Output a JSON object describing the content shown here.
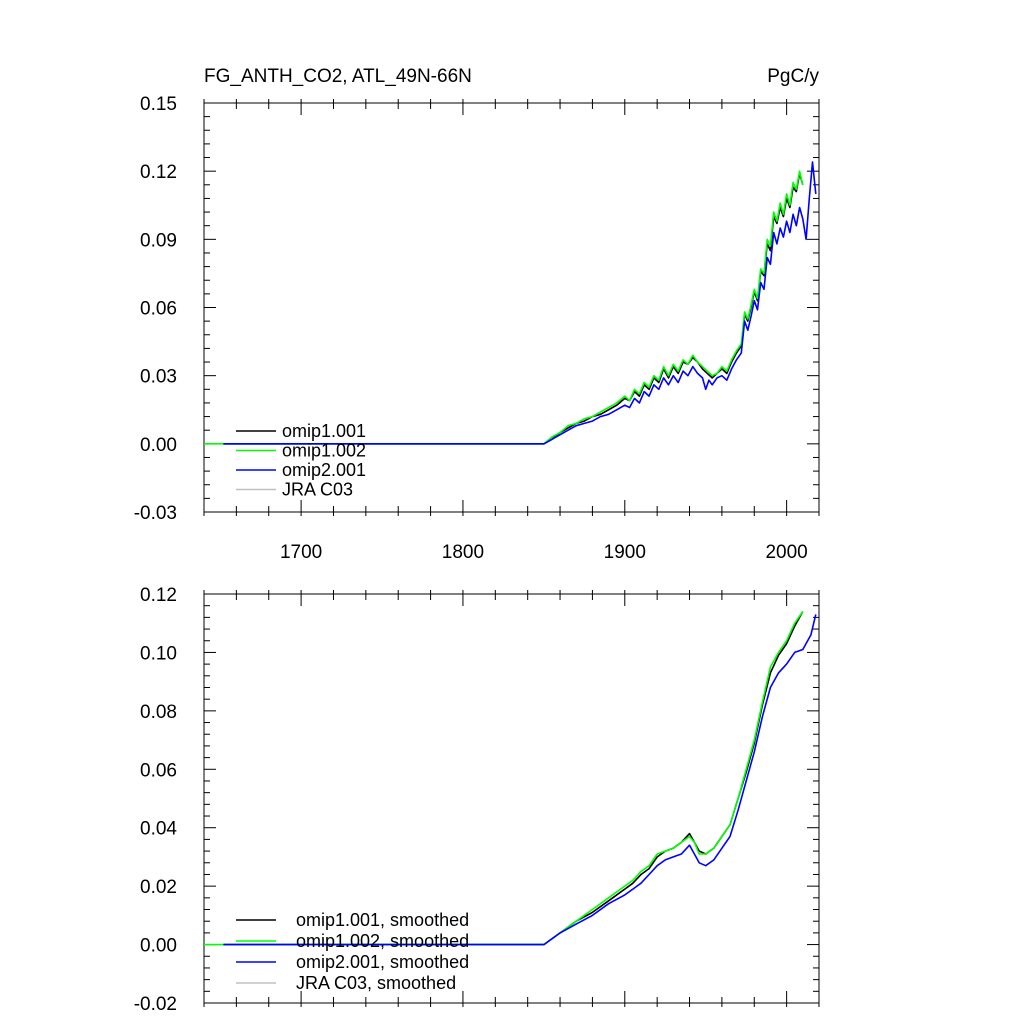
{
  "header": {
    "title": "FG_ANTH_CO2, ATL_49N-66N",
    "units": "PgC/y"
  },
  "chart_data": [
    {
      "id": "annual",
      "type": "line",
      "title": "FG_ANTH_CO2, ATL_49N-66N",
      "ylabel_right": "PgC/y",
      "xlim": [
        1640,
        2020
      ],
      "ylim": [
        -0.03,
        0.15
      ],
      "xticks": [
        1700,
        1800,
        1900,
        2000
      ],
      "xtick_labels": [
        "1700",
        "1800",
        "1900",
        "2000"
      ],
      "yticks": [
        -0.03,
        0,
        0.03,
        0.06,
        0.09,
        0.12,
        0.15
      ],
      "ytick_labels": [
        "-0.03",
        "0.00",
        "0.03",
        "0.06",
        "0.09",
        "0.12",
        "0.15"
      ],
      "legend": [
        "omip1.001",
        "omip1.002",
        "omip2.001",
        "JRA C03"
      ],
      "legend_position": "bottom-left",
      "series": [
        {
          "name": "omip1.001",
          "color": "#000000",
          "x": [
            1652,
            1850,
            1855,
            1860,
            1865,
            1870,
            1875,
            1880,
            1885,
            1890,
            1895,
            1900,
            1903,
            1906,
            1909,
            1912,
            1915,
            1918,
            1921,
            1924,
            1927,
            1930,
            1933,
            1936,
            1939,
            1942,
            1945,
            1948,
            1951,
            1954,
            1957,
            1960,
            1963,
            1966,
            1969,
            1972,
            1974,
            1976,
            1978,
            1980,
            1982,
            1984,
            1986,
            1988,
            1990,
            1992,
            1994,
            1996,
            1998,
            2000,
            2002,
            2004,
            2006,
            2008,
            2010
          ],
          "y": [
            0,
            0,
            0.002,
            0.005,
            0.007,
            0.009,
            0.01,
            0.012,
            0.013,
            0.015,
            0.017,
            0.02,
            0.019,
            0.023,
            0.021,
            0.026,
            0.024,
            0.029,
            0.027,
            0.033,
            0.029,
            0.034,
            0.031,
            0.036,
            0.035,
            0.038,
            0.036,
            0.033,
            0.031,
            0.029,
            0.031,
            0.033,
            0.031,
            0.036,
            0.04,
            0.043,
            0.057,
            0.054,
            0.06,
            0.067,
            0.063,
            0.076,
            0.074,
            0.088,
            0.085,
            0.1,
            0.097,
            0.104,
            0.1,
            0.108,
            0.104,
            0.113,
            0.111,
            0.119,
            0.114
          ]
        },
        {
          "name": "omip1.002",
          "color": "#00ff00",
          "x": [
            1640,
            1850,
            1855,
            1860,
            1865,
            1870,
            1875,
            1880,
            1885,
            1890,
            1895,
            1900,
            1903,
            1906,
            1909,
            1912,
            1915,
            1918,
            1921,
            1924,
            1927,
            1930,
            1933,
            1936,
            1939,
            1942,
            1945,
            1948,
            1951,
            1954,
            1957,
            1960,
            1963,
            1966,
            1969,
            1972,
            1974,
            1976,
            1978,
            1980,
            1982,
            1984,
            1986,
            1988,
            1990,
            1992,
            1994,
            1996,
            1998,
            2000,
            2002,
            2004,
            2006,
            2008,
            2010
          ],
          "y": [
            0,
            0,
            0.003,
            0.005,
            0.008,
            0.009,
            0.011,
            0.012,
            0.014,
            0.016,
            0.018,
            0.021,
            0.019,
            0.024,
            0.022,
            0.027,
            0.025,
            0.03,
            0.028,
            0.034,
            0.03,
            0.035,
            0.032,
            0.037,
            0.035,
            0.039,
            0.036,
            0.034,
            0.032,
            0.03,
            0.031,
            0.034,
            0.032,
            0.037,
            0.041,
            0.044,
            0.058,
            0.055,
            0.061,
            0.068,
            0.064,
            0.077,
            0.075,
            0.09,
            0.087,
            0.102,
            0.098,
            0.106,
            0.101,
            0.11,
            0.105,
            0.115,
            0.112,
            0.12,
            0.114
          ]
        },
        {
          "name": "omip2.001",
          "color": "#0000ff",
          "x": [
            1652,
            1850,
            1855,
            1860,
            1865,
            1870,
            1875,
            1880,
            1885,
            1890,
            1895,
            1900,
            1903,
            1906,
            1909,
            1912,
            1915,
            1918,
            1921,
            1924,
            1927,
            1930,
            1933,
            1936,
            1939,
            1942,
            1945,
            1948,
            1950,
            1952,
            1954,
            1957,
            1960,
            1963,
            1966,
            1969,
            1972,
            1974,
            1976,
            1978,
            1980,
            1982,
            1984,
            1986,
            1988,
            1990,
            1992,
            1994,
            1996,
            1998,
            2000,
            2002,
            2004,
            2006,
            2008,
            2010,
            2012,
            2014,
            2016,
            2018
          ],
          "y": [
            0,
            0,
            0.002,
            0.004,
            0.006,
            0.008,
            0.009,
            0.01,
            0.012,
            0.013,
            0.015,
            0.017,
            0.016,
            0.02,
            0.018,
            0.023,
            0.021,
            0.026,
            0.024,
            0.029,
            0.026,
            0.03,
            0.027,
            0.032,
            0.03,
            0.034,
            0.031,
            0.029,
            0.024,
            0.028,
            0.026,
            0.029,
            0.03,
            0.028,
            0.033,
            0.037,
            0.04,
            0.054,
            0.05,
            0.056,
            0.063,
            0.059,
            0.071,
            0.068,
            0.082,
            0.079,
            0.093,
            0.088,
            0.095,
            0.091,
            0.098,
            0.093,
            0.101,
            0.096,
            0.104,
            0.099,
            0.09,
            0.108,
            0.124,
            0.11
          ]
        },
        {
          "name": "JRA C03",
          "color": "#c0c0c0",
          "x": [],
          "y": []
        }
      ]
    },
    {
      "id": "smoothed",
      "type": "line",
      "xlim": [
        1640,
        2020
      ],
      "ylim": [
        -0.02,
        0.12
      ],
      "xticks": [
        1700,
        1800,
        1900,
        2000
      ],
      "yticks": [
        -0.02,
        0,
        0.02,
        0.04,
        0.06,
        0.08,
        0.1,
        0.12
      ],
      "ytick_labels": [
        "-0.02",
        "0.00",
        "0.02",
        "0.04",
        "0.06",
        "0.08",
        "0.10",
        "0.12"
      ],
      "legend": [
        "omip1.001, smoothed",
        "omip1.002, smoothed",
        "omip2.001, smoothed",
        "JRA C03, smoothed"
      ],
      "legend_position": "bottom-left",
      "series": [
        {
          "name": "omip1.001, smoothed",
          "color": "#000000",
          "x": [
            1652,
            1850,
            1860,
            1870,
            1880,
            1890,
            1900,
            1905,
            1910,
            1915,
            1920,
            1925,
            1930,
            1935,
            1940,
            1943,
            1946,
            1950,
            1955,
            1960,
            1965,
            1970,
            1975,
            1980,
            1985,
            1990,
            1995,
            2000,
            2005,
            2010
          ],
          "y": [
            0,
            0,
            0.004,
            0.008,
            0.011,
            0.015,
            0.019,
            0.021,
            0.024,
            0.026,
            0.03,
            0.032,
            0.033,
            0.035,
            0.038,
            0.035,
            0.032,
            0.031,
            0.033,
            0.037,
            0.041,
            0.05,
            0.059,
            0.069,
            0.082,
            0.093,
            0.099,
            0.103,
            0.109,
            0.114
          ]
        },
        {
          "name": "omip1.002, smoothed",
          "color": "#00ff00",
          "x": [
            1640,
            1850,
            1860,
            1870,
            1880,
            1890,
            1900,
            1905,
            1910,
            1915,
            1920,
            1925,
            1930,
            1935,
            1940,
            1943,
            1946,
            1950,
            1955,
            1960,
            1965,
            1970,
            1975,
            1980,
            1985,
            1990,
            1995,
            2000,
            2005,
            2010
          ],
          "y": [
            0,
            0,
            0.004,
            0.008,
            0.012,
            0.016,
            0.02,
            0.022,
            0.025,
            0.027,
            0.031,
            0.032,
            0.033,
            0.035,
            0.037,
            0.035,
            0.031,
            0.031,
            0.033,
            0.037,
            0.041,
            0.05,
            0.06,
            0.07,
            0.083,
            0.095,
            0.1,
            0.104,
            0.11,
            0.114
          ]
        },
        {
          "name": "omip2.001, smoothed",
          "color": "#0000ff",
          "x": [
            1652,
            1850,
            1860,
            1870,
            1880,
            1890,
            1900,
            1905,
            1910,
            1915,
            1920,
            1925,
            1930,
            1935,
            1940,
            1943,
            1946,
            1950,
            1955,
            1960,
            1965,
            1970,
            1975,
            1980,
            1985,
            1990,
            1995,
            2000,
            2005,
            2010,
            2015,
            2018
          ],
          "y": [
            0,
            0,
            0.004,
            0.007,
            0.01,
            0.014,
            0.017,
            0.019,
            0.021,
            0.024,
            0.027,
            0.029,
            0.03,
            0.031,
            0.034,
            0.031,
            0.028,
            0.027,
            0.029,
            0.033,
            0.037,
            0.046,
            0.056,
            0.066,
            0.078,
            0.088,
            0.093,
            0.096,
            0.1,
            0.101,
            0.106,
            0.113
          ]
        },
        {
          "name": "JRA C03, smoothed",
          "color": "#c0c0c0",
          "x": [],
          "y": []
        }
      ]
    }
  ]
}
